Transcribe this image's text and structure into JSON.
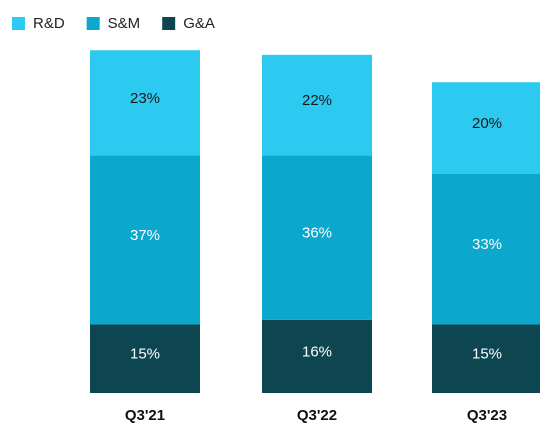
{
  "chart_data": {
    "type": "stacked_bar",
    "categories": [
      "Q3'21",
      "Q3'22",
      "Q3'23"
    ],
    "series": [
      {
        "name": "R&D",
        "color": "#2cc9f1",
        "values": [
          23,
          22,
          20
        ],
        "value_labels": [
          "23%",
          "22%",
          "20%"
        ]
      },
      {
        "name": "S&M",
        "color": "#0ba7cd",
        "values": [
          37,
          36,
          33
        ],
        "value_labels": [
          "37%",
          "36%",
          "33%"
        ]
      },
      {
        "name": "G&A",
        "color": "#0d4651",
        "values": [
          15,
          16,
          15
        ],
        "value_labels": [
          "15%",
          "16%",
          "15%"
        ]
      }
    ],
    "legend": "top-left"
  }
}
